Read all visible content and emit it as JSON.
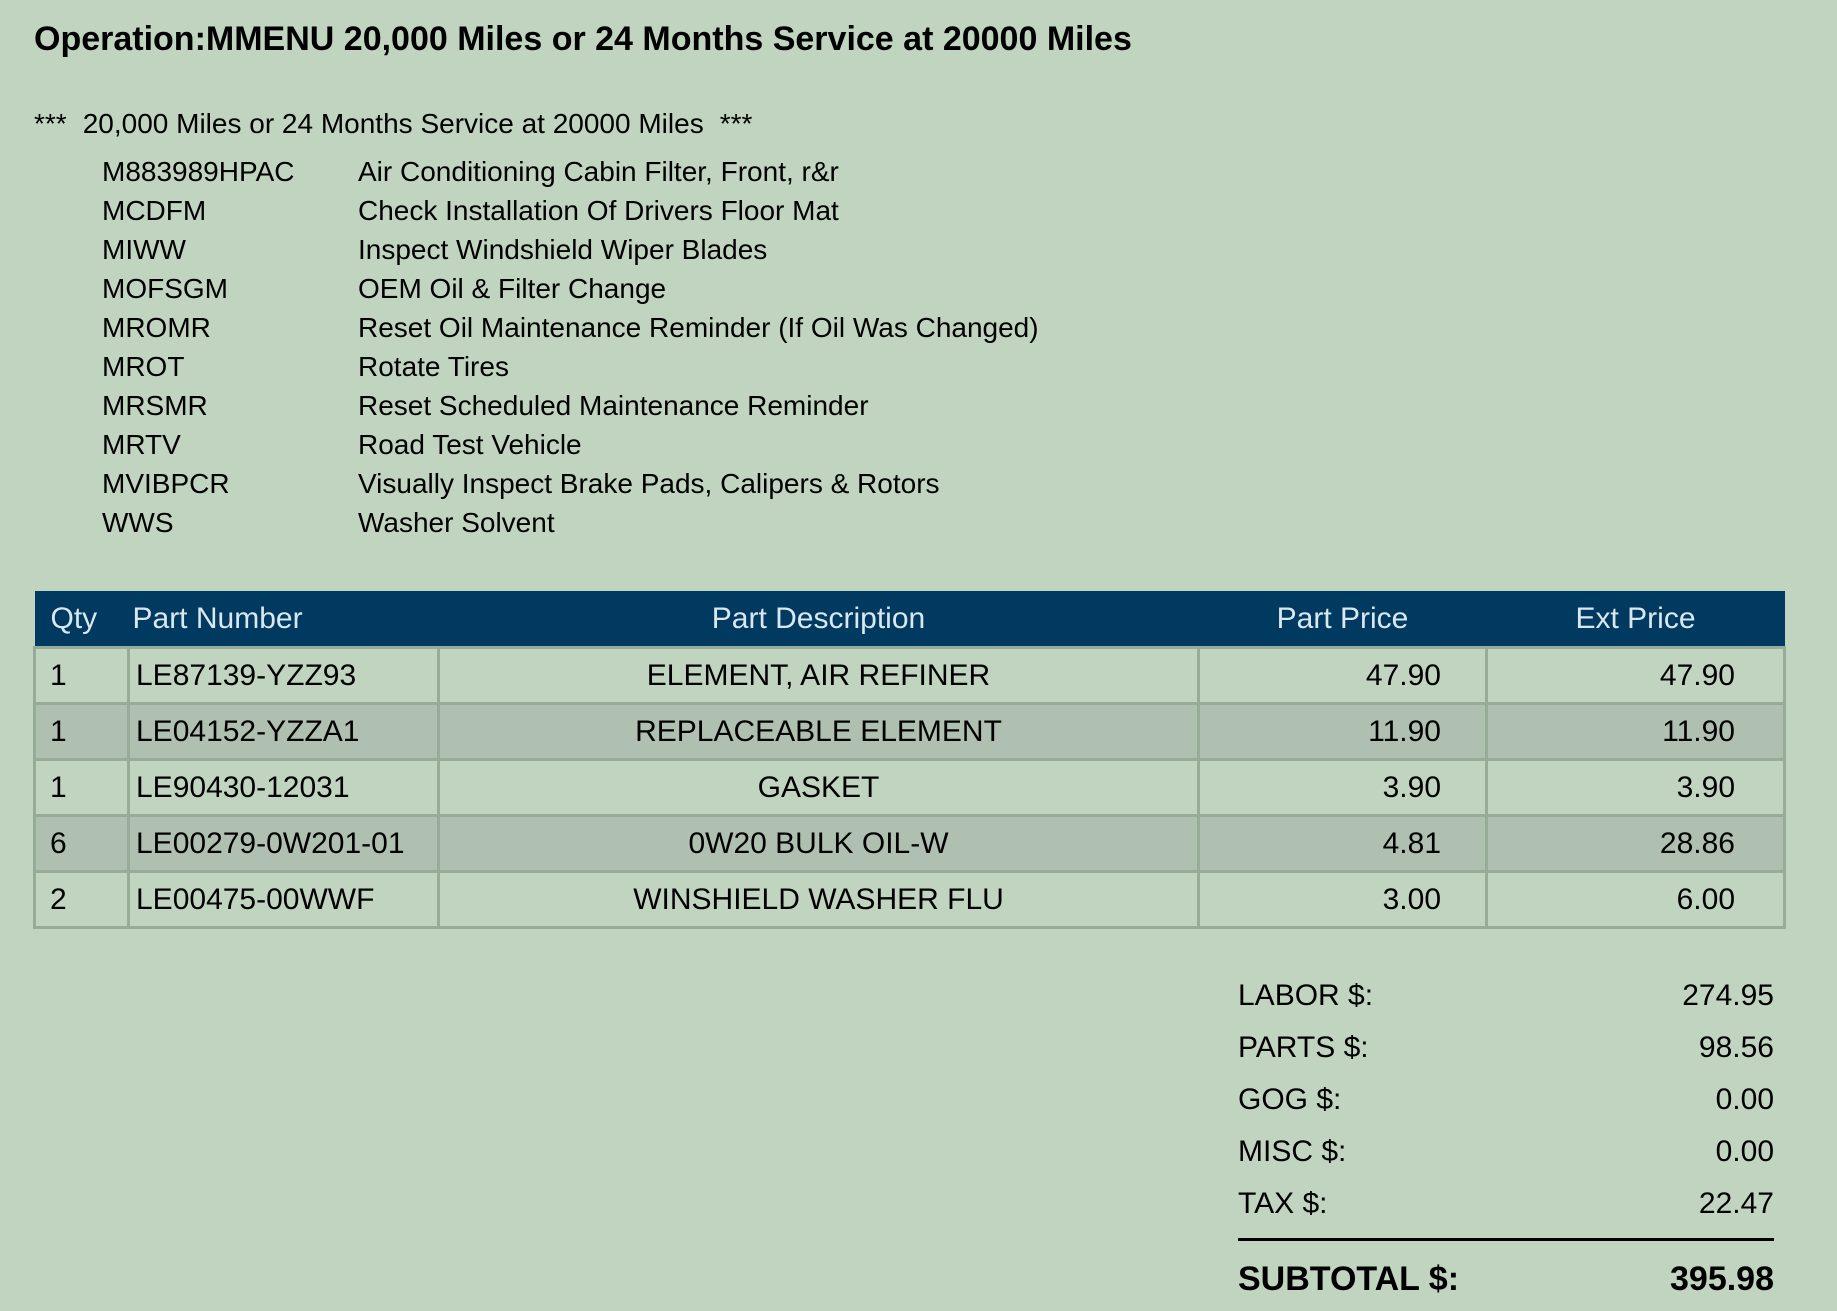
{
  "header": {
    "operation_label": "Operation:",
    "operation_title": "MMENU 20,000 Miles or 24 Months Service at 20000 Miles"
  },
  "subheader": {
    "stars_left": "***",
    "text": "20,000 Miles or 24 Months Service at 20000 Miles",
    "stars_right": "***"
  },
  "operations": [
    {
      "code": "M883989HPAC",
      "desc": "Air Conditioning Cabin Filter, Front, r&r"
    },
    {
      "code": "MCDFM",
      "desc": "Check Installation Of Drivers Floor Mat"
    },
    {
      "code": "MIWW",
      "desc": "Inspect Windshield Wiper Blades"
    },
    {
      "code": "MOFSGM",
      "desc": "OEM Oil & Filter Change"
    },
    {
      "code": "MROMR",
      "desc": "Reset Oil Maintenance Reminder (If Oil Was Changed)"
    },
    {
      "code": "MROT",
      "desc": "Rotate Tires"
    },
    {
      "code": "MRSMR",
      "desc": "Reset Scheduled Maintenance Reminder"
    },
    {
      "code": "MRTV",
      "desc": "Road Test Vehicle"
    },
    {
      "code": "MVIBPCR",
      "desc": "Visually Inspect Brake Pads, Calipers & Rotors"
    },
    {
      "code": "WWS",
      "desc": "Washer Solvent"
    }
  ],
  "parts_table": {
    "headers": {
      "qty": "Qty",
      "part_number": "Part Number",
      "part_description": "Part Description",
      "part_price": "Part Price",
      "ext_price": "Ext Price"
    },
    "rows": [
      {
        "qty": "1",
        "part_number": "LE87139-YZZ93",
        "part_description": "ELEMENT, AIR REFINER",
        "part_price": "47.90",
        "ext_price": "47.90"
      },
      {
        "qty": "1",
        "part_number": "LE04152-YZZA1",
        "part_description": "REPLACEABLE ELEMENT",
        "part_price": "11.90",
        "ext_price": "11.90"
      },
      {
        "qty": "1",
        "part_number": "LE90430-12031",
        "part_description": "GASKET",
        "part_price": "3.90",
        "ext_price": "3.90"
      },
      {
        "qty": "6",
        "part_number": "LE00279-0W201-01",
        "part_description": "0W20 BULK OIL-W",
        "part_price": "4.81",
        "ext_price": "28.86"
      },
      {
        "qty": "2",
        "part_number": "LE00475-00WWF",
        "part_description": "WINSHIELD WASHER FLU",
        "part_price": "3.00",
        "ext_price": "6.00"
      }
    ]
  },
  "totals": {
    "labor_label": "LABOR $:",
    "labor_value": "274.95",
    "parts_label": "PARTS $:",
    "parts_value": "98.56",
    "gog_label": "GOG $:",
    "gog_value": "0.00",
    "misc_label": "MISC $:",
    "misc_value": "0.00",
    "tax_label": "TAX $:",
    "tax_value": "22.47",
    "subtotal_label": "SUBTOTAL $:",
    "subtotal_value": "395.98"
  },
  "colors": {
    "page_background": "#c0d4c0",
    "table_header_background": "#003a60",
    "table_header_text": "#dbe7ef",
    "row_alt_background": "#b0c0b0"
  }
}
